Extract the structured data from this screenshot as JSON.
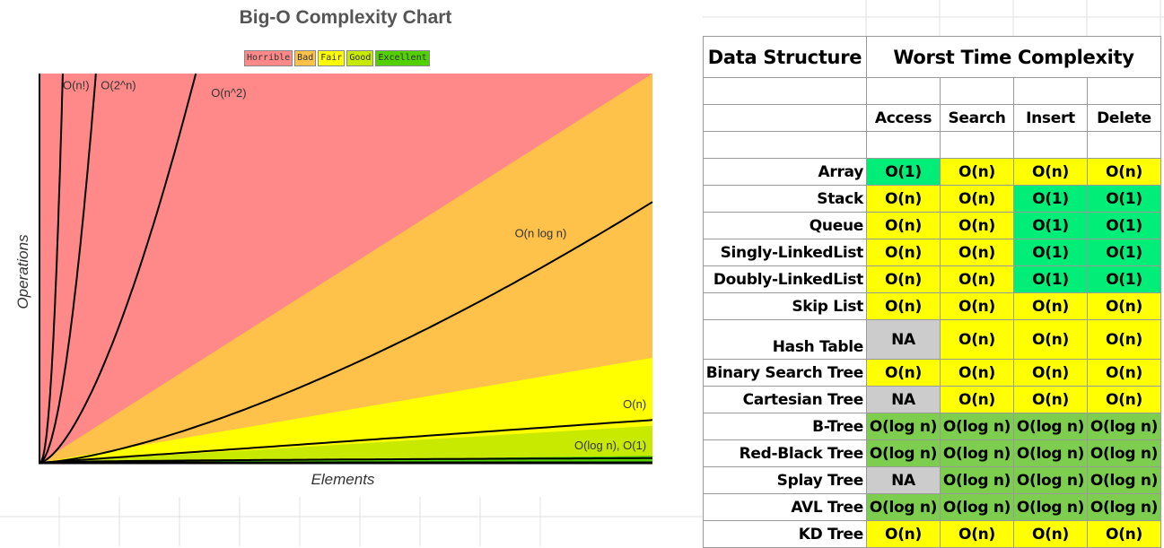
{
  "chart_data": {
    "type": "area",
    "title": "Big-O Complexity Chart",
    "xlabel": "Elements",
    "ylabel": "Operations",
    "legend": [
      {
        "label": "Horrible",
        "color": "#ff8989"
      },
      {
        "label": "Bad",
        "color": "#fec149"
      },
      {
        "label": "Fair",
        "color": "#ffff00"
      },
      {
        "label": "Good",
        "color": "#c8ea00"
      },
      {
        "label": "Excellent",
        "color": "#53d000"
      }
    ],
    "legend_position": "top",
    "xlim": [
      0,
      100
    ],
    "ylim": [
      0,
      100
    ],
    "regions": [
      {
        "name": "Horrible",
        "color": "#ff8989"
      },
      {
        "name": "Bad",
        "color": "#fec149"
      },
      {
        "name": "Fair",
        "color": "#ffff00"
      },
      {
        "name": "Good",
        "color": "#c8ea00"
      },
      {
        "name": "Excellent",
        "color": "#53d000"
      }
    ],
    "series": [
      {
        "name": "O(n!)",
        "function": "factorial"
      },
      {
        "name": "O(2^n)",
        "function": "exponential"
      },
      {
        "name": "O(n^2)",
        "function": "quadratic"
      },
      {
        "name": "O(n log n)",
        "function": "linearithmic"
      },
      {
        "name": "O(n)",
        "function": "linear"
      },
      {
        "name": "O(log n), O(1)",
        "function": "logarithmic-constant"
      }
    ]
  },
  "table": {
    "col_name_header": "Data Structure",
    "group_header": "Worst Time Complexity",
    "columns": [
      "Access",
      "Search",
      "Insert",
      "Delete"
    ],
    "colors": {
      "O(1)": "#00ee77",
      "O(n)": "#ffff00",
      "NA": "#cccccc",
      "O(log n)": "#7dce4f"
    },
    "rows": [
      {
        "name": "Array",
        "values": [
          "O(1)",
          "O(n)",
          "O(n)",
          "O(n)"
        ]
      },
      {
        "name": "Stack",
        "values": [
          "O(n)",
          "O(n)",
          "O(1)",
          "O(1)"
        ]
      },
      {
        "name": "Queue",
        "values": [
          "O(n)",
          "O(n)",
          "O(1)",
          "O(1)"
        ]
      },
      {
        "name": "Singly-LinkedList",
        "values": [
          "O(n)",
          "O(n)",
          "O(1)",
          "O(1)"
        ]
      },
      {
        "name": "Doubly-LinkedList",
        "values": [
          "O(n)",
          "O(n)",
          "O(1)",
          "O(1)"
        ]
      },
      {
        "name": "Skip List",
        "values": [
          "O(n)",
          "O(n)",
          "O(n)",
          "O(n)"
        ]
      },
      {
        "name": "Hash Table",
        "values": [
          "NA",
          "O(n)",
          "O(n)",
          "O(n)"
        ]
      },
      {
        "name": "Binary Search Tree",
        "values": [
          "O(n)",
          "O(n)",
          "O(n)",
          "O(n)"
        ]
      },
      {
        "name": "Cartesian Tree",
        "values": [
          "NA",
          "O(n)",
          "O(n)",
          "O(n)"
        ]
      },
      {
        "name": "B-Tree",
        "values": [
          "O(log n)",
          "O(log n)",
          "O(log n)",
          "O(log n)"
        ]
      },
      {
        "name": "Red-Black Tree",
        "values": [
          "O(log n)",
          "O(log n)",
          "O(log n)",
          "O(log n)"
        ]
      },
      {
        "name": "Splay Tree",
        "values": [
          "NA",
          "O(log n)",
          "O(log n)",
          "O(log n)"
        ]
      },
      {
        "name": "AVL Tree",
        "values": [
          "O(log n)",
          "O(log n)",
          "O(log n)",
          "O(log n)"
        ]
      },
      {
        "name": "KD Tree",
        "values": [
          "O(n)",
          "O(n)",
          "O(n)",
          "O(n)"
        ]
      }
    ]
  }
}
